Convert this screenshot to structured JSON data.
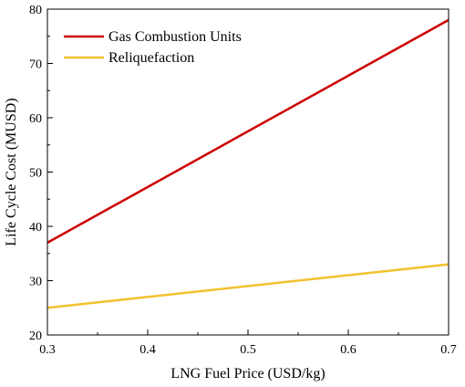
{
  "chart_data": {
    "type": "line",
    "xlabel": "LNG Fuel Price (USD/kg)",
    "ylabel": "Life Cycle Cost (MUSD)",
    "xlim": [
      0.3,
      0.7
    ],
    "ylim": [
      20,
      80
    ],
    "x_ticks": [
      "0.3",
      "0.4",
      "0.5",
      "0.6",
      "0.7"
    ],
    "y_ticks": [
      "20",
      "30",
      "40",
      "50",
      "60",
      "70",
      "80"
    ],
    "grid": false,
    "legend_position": "top-left",
    "x": [
      0.3,
      0.7
    ],
    "series": [
      {
        "name": "Gas Combustion Units",
        "values": [
          37,
          78
        ],
        "color": "#cc0000"
      },
      {
        "name": "Reliquefaction",
        "values": [
          25,
          33
        ],
        "color": "#f2c12e"
      }
    ]
  }
}
